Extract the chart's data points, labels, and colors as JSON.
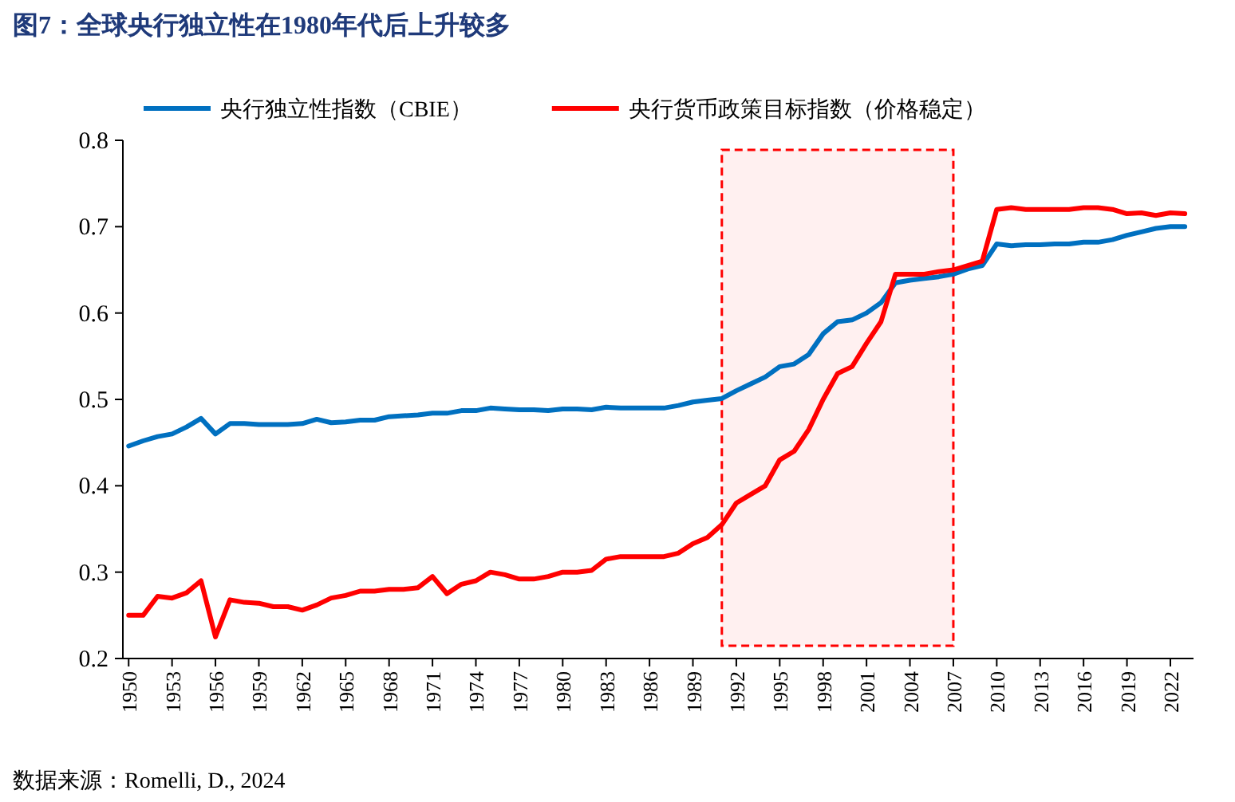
{
  "chart_data": {
    "type": "line",
    "title": "图7：全球央行独立性在1980年代后上升较多",
    "x": [
      1950,
      1951,
      1952,
      1953,
      1954,
      1955,
      1956,
      1957,
      1958,
      1959,
      1960,
      1961,
      1962,
      1963,
      1964,
      1965,
      1966,
      1967,
      1968,
      1969,
      1970,
      1971,
      1972,
      1973,
      1974,
      1975,
      1976,
      1977,
      1978,
      1979,
      1980,
      1981,
      1982,
      1983,
      1984,
      1985,
      1986,
      1987,
      1988,
      1989,
      1990,
      1991,
      1992,
      1993,
      1994,
      1995,
      1996,
      1997,
      1998,
      1999,
      2000,
      2001,
      2002,
      2003,
      2004,
      2005,
      2006,
      2007,
      2008,
      2009,
      2010,
      2011,
      2012,
      2013,
      2014,
      2015,
      2016,
      2017,
      2018,
      2019,
      2020,
      2021,
      2022,
      2023
    ],
    "series": [
      {
        "name": "央行独立性指数（CBIE）",
        "color": "#0070c0",
        "values": [
          0.446,
          0.452,
          0.457,
          0.46,
          0.468,
          0.478,
          0.46,
          0.472,
          0.472,
          0.471,
          0.471,
          0.471,
          0.472,
          0.477,
          0.473,
          0.474,
          0.476,
          0.476,
          0.48,
          0.481,
          0.482,
          0.484,
          0.484,
          0.487,
          0.487,
          0.49,
          0.489,
          0.488,
          0.488,
          0.487,
          0.489,
          0.489,
          0.488,
          0.491,
          0.49,
          0.49,
          0.49,
          0.49,
          0.493,
          0.497,
          0.499,
          0.501,
          0.51,
          0.518,
          0.526,
          0.538,
          0.541,
          0.552,
          0.576,
          0.59,
          0.592,
          0.6,
          0.612,
          0.635,
          0.638,
          0.64,
          0.642,
          0.645,
          0.651,
          0.655,
          0.68,
          0.678,
          0.679,
          0.679,
          0.68,
          0.68,
          0.682,
          0.682,
          0.685,
          0.69,
          0.694,
          0.698,
          0.7,
          0.7
        ]
      },
      {
        "name": "央行货币政策目标指数（价格稳定）",
        "color": "#ff0000",
        "values": [
          0.25,
          0.25,
          0.272,
          0.27,
          0.276,
          0.29,
          0.225,
          0.268,
          0.265,
          0.264,
          0.26,
          0.26,
          0.256,
          0.262,
          0.27,
          0.273,
          0.278,
          0.278,
          0.28,
          0.28,
          0.282,
          0.295,
          0.275,
          0.286,
          0.29,
          0.3,
          0.297,
          0.292,
          0.292,
          0.295,
          0.3,
          0.3,
          0.302,
          0.315,
          0.318,
          0.318,
          0.318,
          0.318,
          0.322,
          0.333,
          0.34,
          0.355,
          0.38,
          0.39,
          0.4,
          0.43,
          0.44,
          0.465,
          0.5,
          0.53,
          0.538,
          0.565,
          0.59,
          0.645,
          0.645,
          0.645,
          0.648,
          0.65,
          0.655,
          0.66,
          0.72,
          0.722,
          0.72,
          0.72,
          0.72,
          0.72,
          0.722,
          0.722,
          0.72,
          0.715,
          0.716,
          0.713,
          0.716,
          0.715
        ]
      }
    ],
    "xlim": [
      1949.6,
      2023.6
    ],
    "xticks": [
      1950,
      1953,
      1956,
      1959,
      1962,
      1965,
      1968,
      1971,
      1974,
      1977,
      1980,
      1983,
      1986,
      1989,
      1992,
      1995,
      1998,
      2001,
      2004,
      2007,
      2010,
      2013,
      2016,
      2019,
      2022
    ],
    "ylim": [
      0.2,
      0.8
    ],
    "yticks": [
      0.2,
      0.3,
      0.4,
      0.5,
      0.6,
      0.7,
      0.8
    ],
    "bands": [
      {
        "axis": "x",
        "from": 1991,
        "to": 2007,
        "color": "#ff0000"
      }
    ],
    "grid": false,
    "legend": "top",
    "marker": "none",
    "line_style": "solid",
    "annotations": [
      "数据来源：Romelli, D., 2024"
    ]
  }
}
